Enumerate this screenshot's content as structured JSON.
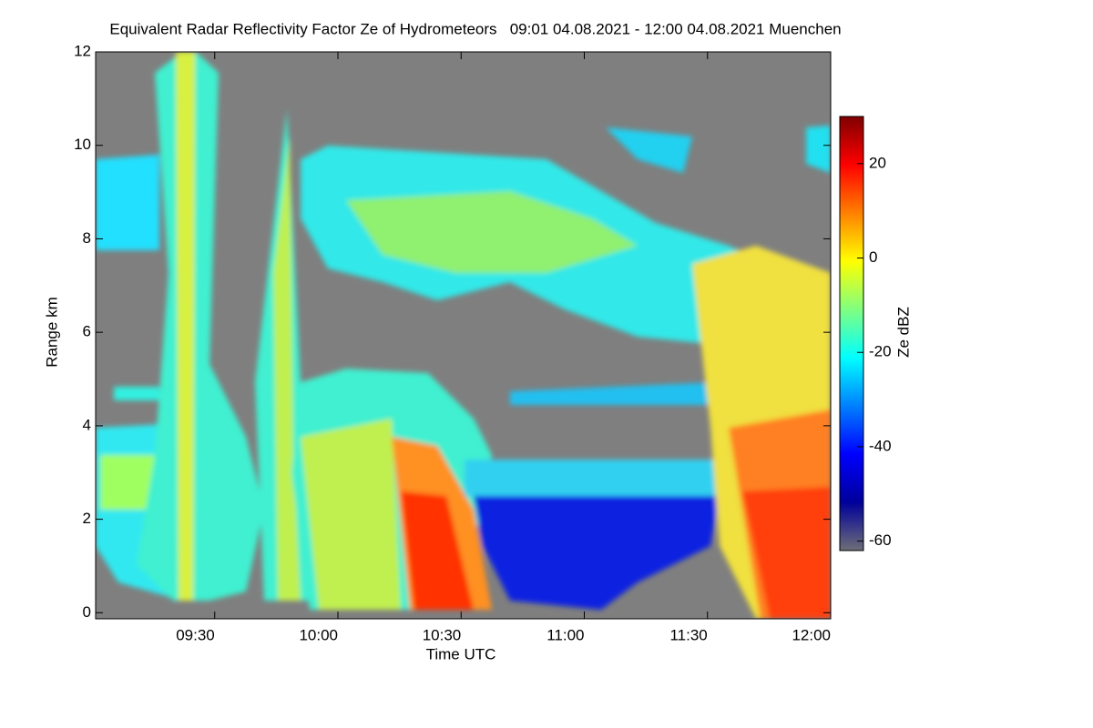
{
  "chart_data": {
    "type": "heatmap",
    "title": "Equivalent Radar Reflectivity Factor Ze of Hydrometeors   09:01 04.08.2021 - 12:00 04.08.2021 Muenchen",
    "x_label": "Time UTC",
    "y_label": "Range km",
    "colorbar_label": "Ze dBZ",
    "xlim": [
      541,
      720
    ],
    "xticks": [
      {
        "value": 570,
        "label": "09:30"
      },
      {
        "value": 600,
        "label": "10:00"
      },
      {
        "value": 630,
        "label": "10:30"
      },
      {
        "value": 660,
        "label": "11:00"
      },
      {
        "value": 690,
        "label": "11:30"
      },
      {
        "value": 720,
        "label": "12:00"
      }
    ],
    "ylim": [
      -0.13,
      12
    ],
    "yticks": [
      0,
      2,
      4,
      6,
      8,
      10,
      12
    ],
    "clim": [
      -62,
      30
    ],
    "cticks": [
      -60,
      -40,
      -20,
      0,
      20
    ],
    "colormap": [
      "#6e6e78",
      "#00009a",
      "#0000ff",
      "#0080ff",
      "#00ffff",
      "#80ff80",
      "#ffff00",
      "#ff8000",
      "#ff0000",
      "#800000"
    ]
  }
}
